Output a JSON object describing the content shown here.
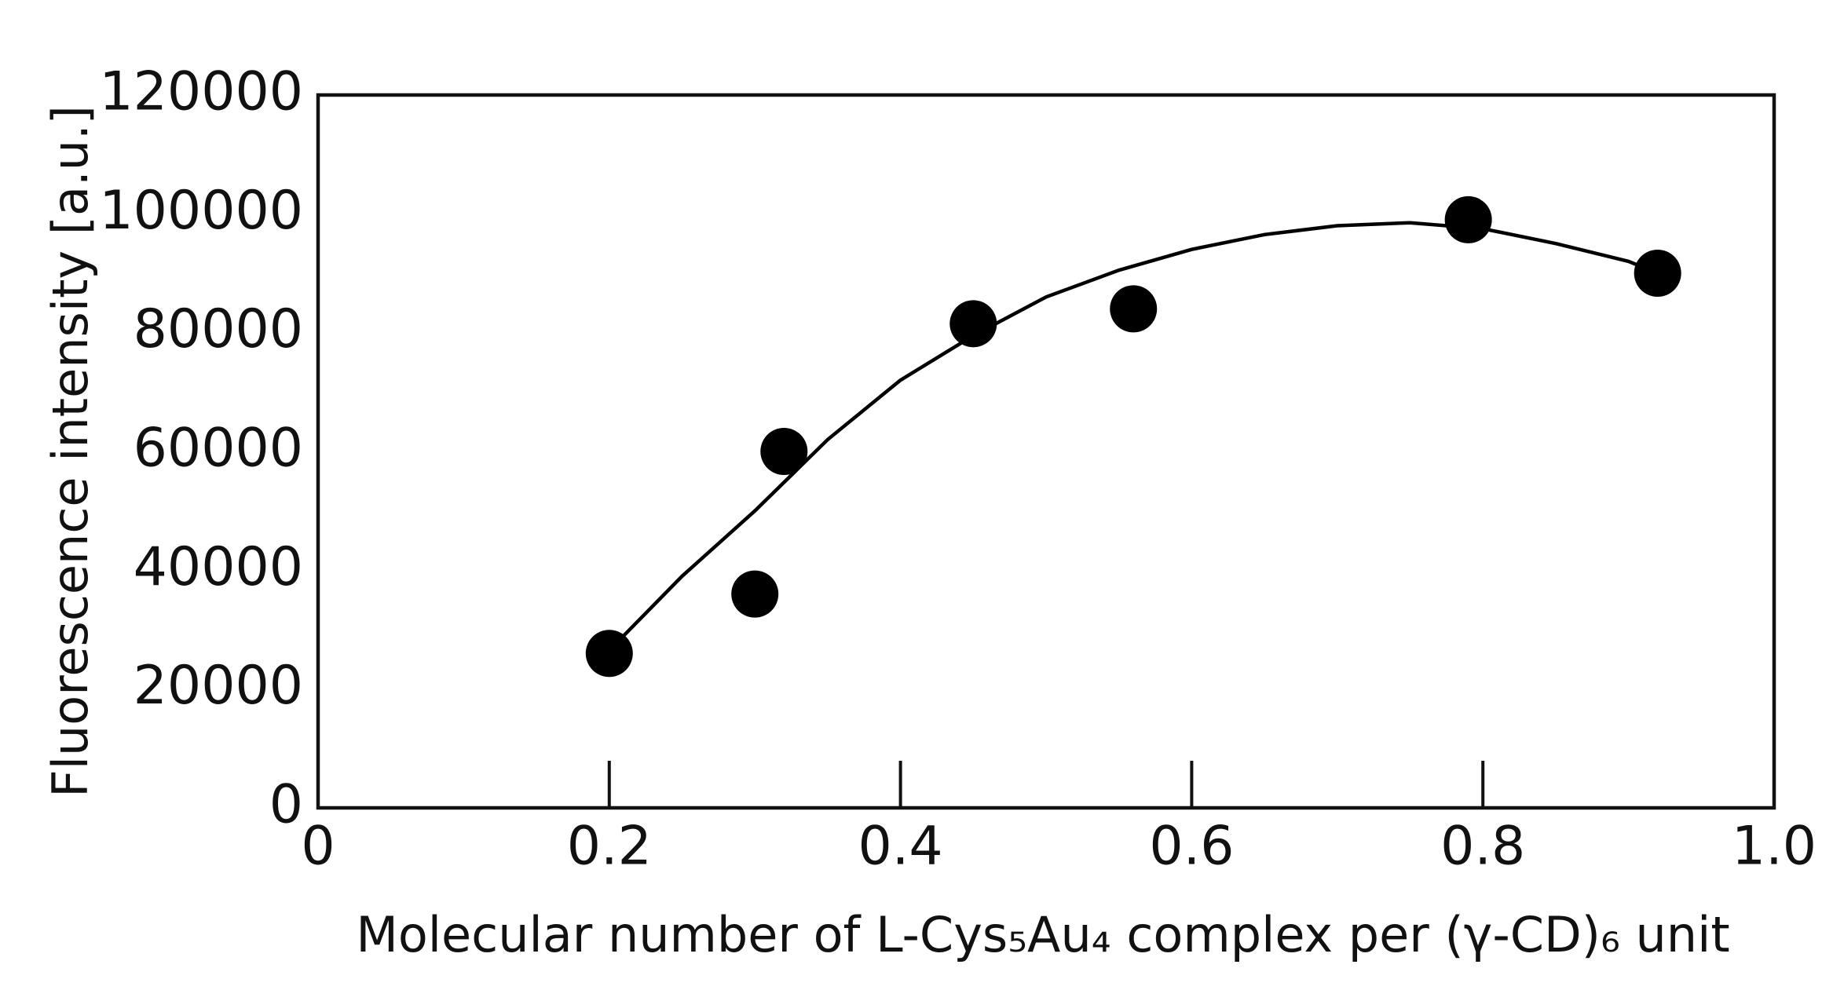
{
  "chart_data": {
    "type": "scatter",
    "x_label": "Molecular number of L-Cys₅Au₄ complex per (γ-CD)₆ unit",
    "y_label": "Fluorescence intensity [a.u.]",
    "x": [
      0.2,
      0.3,
      0.32,
      0.45,
      0.56,
      0.79,
      0.92
    ],
    "values": [
      26000,
      36000,
      60000,
      81500,
      84000,
      99000,
      90000
    ],
    "color": "#000000",
    "fit": {
      "x": [
        0.21,
        0.25,
        0.3,
        0.35,
        0.4,
        0.45,
        0.5,
        0.55,
        0.6,
        0.65,
        0.7,
        0.75,
        0.8,
        0.85,
        0.9,
        0.92
      ],
      "values": [
        29000,
        39000,
        50000,
        62000,
        72000,
        79500,
        86000,
        90500,
        94000,
        96500,
        98000,
        98500,
        97500,
        95000,
        92000,
        90000
      ]
    },
    "xlim": [
      0,
      1
    ],
    "ylim": [
      0,
      120000
    ],
    "xticks": [
      0,
      0.2,
      0.4,
      0.6,
      0.8,
      {
        "value": 1,
        "label": "1.0"
      }
    ],
    "yticks": [
      0,
      20000,
      40000,
      60000,
      80000,
      100000,
      120000
    ]
  }
}
